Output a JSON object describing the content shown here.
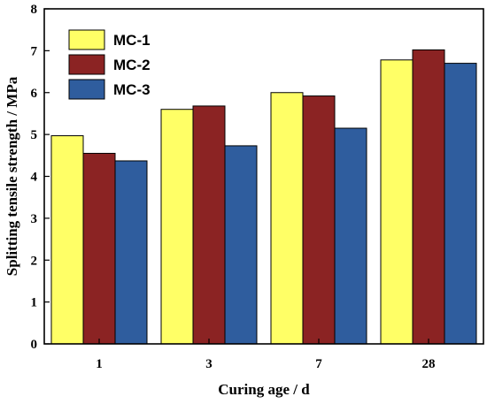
{
  "chart_data": {
    "type": "bar",
    "xlabel": "Curing age / d",
    "ylabel": "Splitting tensile strength / MPa",
    "categories": [
      "1",
      "3",
      "7",
      "28"
    ],
    "ylim": [
      0,
      8
    ],
    "yticks": [
      0,
      1,
      2,
      3,
      4,
      5,
      6,
      7,
      8
    ],
    "grid": false,
    "legend_position": "top-left",
    "series": [
      {
        "name": "MC-1",
        "color": "#ffff66",
        "values": [
          4.97,
          5.6,
          6.0,
          6.78
        ]
      },
      {
        "name": "MC-2",
        "color": "#8b2323",
        "values": [
          4.55,
          5.68,
          5.92,
          7.02
        ]
      },
      {
        "name": "MC-3",
        "color": "#2f5d9e",
        "values": [
          4.37,
          4.73,
          5.15,
          6.7
        ]
      }
    ]
  }
}
